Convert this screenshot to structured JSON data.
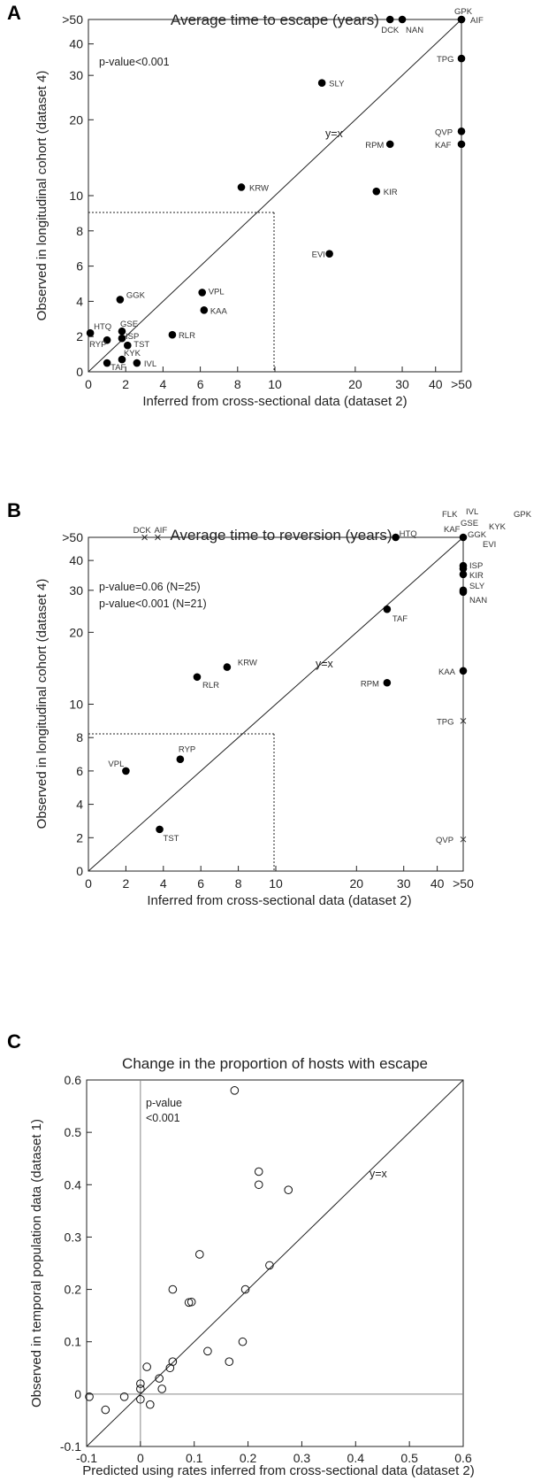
{
  "chart_data": [
    {
      "panel": "A",
      "type": "scatter",
      "title": "Average time to escape (years)",
      "xlabel": "Inferred from cross-sectional data (dataset 2)",
      "ylabel": "Observed in longitudinal cohort (dataset 4)",
      "annotations": [
        "p-value<0.001"
      ],
      "diagonal_label": "y=x",
      "xticks": [
        "0",
        "2",
        "4",
        "6",
        "8",
        "10",
        "20",
        "30",
        "40",
        ">50"
      ],
      "yticks": [
        "0",
        "2",
        "4",
        "6",
        "8",
        "10",
        "20",
        "30",
        "40",
        ">50"
      ],
      "points": [
        {
          "label": "GPK",
          "x": 50,
          "y": 50,
          "marker": "dot"
        },
        {
          "label": "AIF",
          "x": 50,
          "y": 50,
          "marker": "dot"
        },
        {
          "label": "DCK",
          "x": 27,
          "y": 50,
          "marker": "dot"
        },
        {
          "label": "NAN",
          "x": 30,
          "y": 50,
          "marker": "dot"
        },
        {
          "label": "TPG",
          "x": 50,
          "y": 35,
          "marker": "dot"
        },
        {
          "label": "SLY",
          "x": 15,
          "y": 28,
          "marker": "dot"
        },
        {
          "label": "QVP",
          "x": 50,
          "y": 18,
          "marker": "dot"
        },
        {
          "label": "KAF",
          "x": 50,
          "y": 16,
          "marker": "dot"
        },
        {
          "label": "RPM",
          "x": 27,
          "y": 16,
          "marker": "dot"
        },
        {
          "label": "KRW",
          "x": 8.2,
          "y": 10.8,
          "marker": "dot"
        },
        {
          "label": "KIR",
          "x": 24,
          "y": 10.4,
          "marker": "dot"
        },
        {
          "label": "EVI",
          "x": 16,
          "y": 6.7,
          "marker": "dot"
        },
        {
          "label": "VPL",
          "x": 6.1,
          "y": 4.5,
          "marker": "dot"
        },
        {
          "label": "GGK",
          "x": 1.7,
          "y": 4.1,
          "marker": "dot"
        },
        {
          "label": "KAA",
          "x": 6.2,
          "y": 3.5,
          "marker": "dot"
        },
        {
          "label": "HTQ",
          "x": 0.1,
          "y": 2.2,
          "marker": "dot"
        },
        {
          "label": "GSE",
          "x": 1.8,
          "y": 2.3,
          "marker": "dot"
        },
        {
          "label": "RLR",
          "x": 4.5,
          "y": 2.1,
          "marker": "dot"
        },
        {
          "label": "RYP",
          "x": 1.0,
          "y": 1.8,
          "marker": "dot"
        },
        {
          "label": "ISP",
          "x": 1.8,
          "y": 1.9,
          "marker": "dot"
        },
        {
          "label": "TST",
          "x": 2.1,
          "y": 1.5,
          "marker": "dot"
        },
        {
          "label": "KYK",
          "x": 1.8,
          "y": 0.7,
          "marker": "dot"
        },
        {
          "label": "TAF",
          "x": 1.0,
          "y": 0.5,
          "marker": "dot"
        },
        {
          "label": "IVL",
          "x": 2.6,
          "y": 0.5,
          "marker": "dot"
        }
      ]
    },
    {
      "panel": "B",
      "type": "scatter",
      "title": "Average time to reversion (years)",
      "xlabel": "Inferred from cross-sectional data (dataset 2)",
      "ylabel": "Observed in longitudinal cohort (dataset 4)",
      "annotations": [
        "p-value=0.06   (N=25)",
        "p-value<0.001 (N=21)"
      ],
      "diagonal_label": "y=x",
      "xticks": [
        "0",
        "2",
        "4",
        "6",
        "8",
        "10",
        "20",
        "30",
        "40",
        ">50"
      ],
      "yticks": [
        "0",
        "2",
        "4",
        "6",
        "8",
        "10",
        "20",
        "30",
        "40",
        ">50"
      ],
      "corner_labels": [
        "FLK",
        "IVL",
        "GPK",
        "GSE",
        "KYK",
        "KAF",
        "GGK",
        "EVI"
      ],
      "points": [
        {
          "label": "DCK",
          "x": 3.0,
          "y": 50,
          "marker": "x"
        },
        {
          "label": "AIF",
          "x": 3.7,
          "y": 50,
          "marker": "x"
        },
        {
          "label": "HTQ",
          "x": 28,
          "y": 50,
          "marker": "dot"
        },
        {
          "label": "",
          "x": 50,
          "y": 50,
          "marker": "dot"
        },
        {
          "label": "ISP",
          "x": 50,
          "y": 38,
          "marker": "dot"
        },
        {
          "label": "",
          "x": 50,
          "y": 37,
          "marker": "dot"
        },
        {
          "label": "KIR",
          "x": 50,
          "y": 35,
          "marker": "dot"
        },
        {
          "label": "SLY",
          "x": 50,
          "y": 30,
          "marker": "dot"
        },
        {
          "label": "NAN",
          "x": 50,
          "y": 29.5,
          "marker": "dot"
        },
        {
          "label": "TAF",
          "x": 26,
          "y": 25,
          "marker": "dot"
        },
        {
          "label": "KRW",
          "x": 7.4,
          "y": 14.3,
          "marker": "dot"
        },
        {
          "label": "RLR",
          "x": 5.8,
          "y": 13.0,
          "marker": "dot"
        },
        {
          "label": "KAA",
          "x": 50,
          "y": 13.8,
          "marker": "dot"
        },
        {
          "label": "RPM",
          "x": 26,
          "y": 12.3,
          "marker": "dot"
        },
        {
          "label": "TPG",
          "x": 50,
          "y": 9.0,
          "marker": "x"
        },
        {
          "label": "RYP",
          "x": 4.9,
          "y": 6.7,
          "marker": "dot"
        },
        {
          "label": "VPL",
          "x": 2.0,
          "y": 6.0,
          "marker": "dot"
        },
        {
          "label": "TST",
          "x": 3.8,
          "y": 2.5,
          "marker": "dot"
        },
        {
          "label": "QVP",
          "x": 50,
          "y": 1.9,
          "marker": "x"
        }
      ]
    },
    {
      "panel": "C",
      "type": "scatter",
      "title": "Change in the proportion of hosts with escape",
      "xlabel": "Predicted using rates inferred from cross-sectional data (dataset 2)",
      "ylabel": "Observed in temporal population data (dataset 1)",
      "annotations": [
        "p-value",
        "<0.001"
      ],
      "diagonal_label": "y=x",
      "xlim": [
        -0.1,
        0.6
      ],
      "ylim": [
        -0.1,
        0.6
      ],
      "xticks": [
        "-0.1",
        "0",
        "0.1",
        "0.2",
        "0.3",
        "0.4",
        "0.5",
        "0.6"
      ],
      "yticks": [
        "-0.1",
        "0",
        "0.1",
        "0.2",
        "0.3",
        "0.4",
        "0.5",
        "0.6"
      ],
      "points": [
        {
          "x": 0.175,
          "y": 0.58
        },
        {
          "x": 0.22,
          "y": 0.425
        },
        {
          "x": 0.22,
          "y": 0.4
        },
        {
          "x": 0.275,
          "y": 0.39
        },
        {
          "x": 0.11,
          "y": 0.267
        },
        {
          "x": 0.24,
          "y": 0.246
        },
        {
          "x": 0.06,
          "y": 0.2
        },
        {
          "x": 0.195,
          "y": 0.2
        },
        {
          "x": 0.09,
          "y": 0.175
        },
        {
          "x": 0.095,
          "y": 0.176
        },
        {
          "x": 0.19,
          "y": 0.1
        },
        {
          "x": 0.125,
          "y": 0.082
        },
        {
          "x": 0.165,
          "y": 0.062
        },
        {
          "x": 0.06,
          "y": 0.062
        },
        {
          "x": 0.055,
          "y": 0.05
        },
        {
          "x": 0.012,
          "y": 0.052
        },
        {
          "x": 0.035,
          "y": 0.03
        },
        {
          "x": 0.0,
          "y": 0.02
        },
        {
          "x": 0.0,
          "y": 0.01
        },
        {
          "x": 0.04,
          "y": 0.01
        },
        {
          "x": 0.0,
          "y": -0.01
        },
        {
          "x": 0.018,
          "y": -0.02
        },
        {
          "x": -0.03,
          "y": -0.005
        },
        {
          "x": -0.095,
          "y": -0.005
        },
        {
          "x": -0.065,
          "y": -0.03
        }
      ]
    }
  ]
}
